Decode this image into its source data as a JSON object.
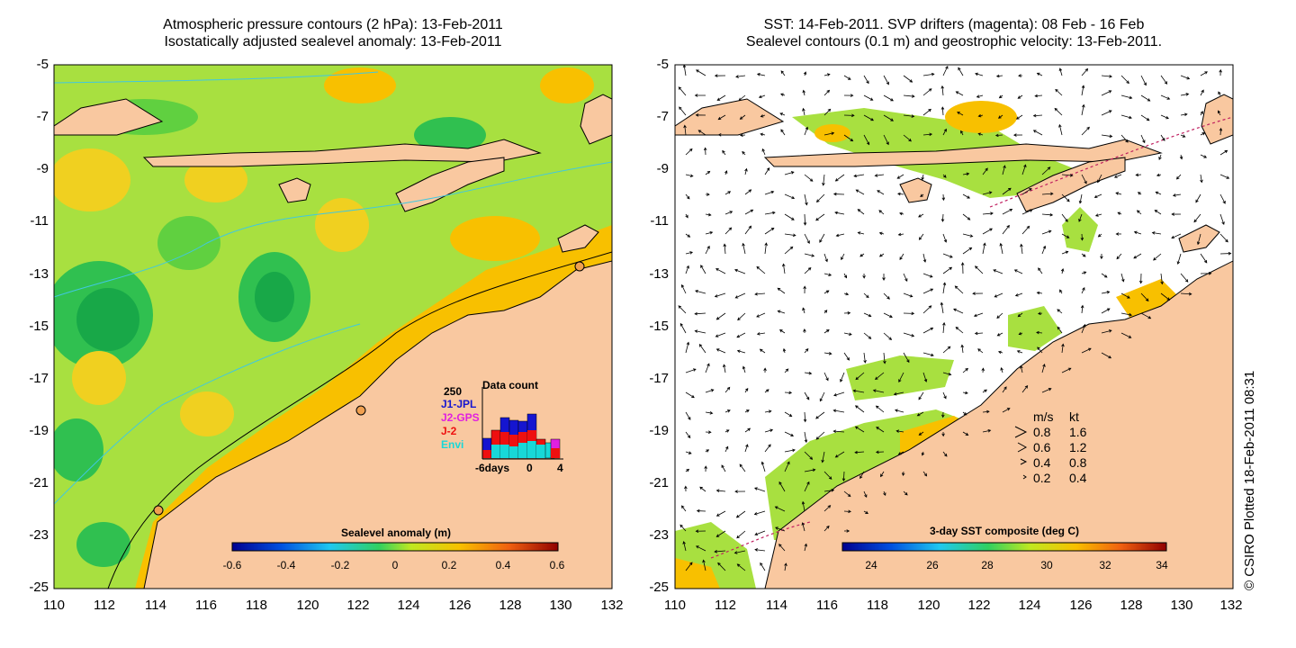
{
  "left_panel": {
    "title_line1": "Atmospheric pressure contours (2 hPa): 13-Feb-2011",
    "title_line2": "Isostatically adjusted sealevel anomaly: 13-Feb-2011",
    "colorbar_label": "Sealevel anomaly (m)",
    "colorbar_ticks": [
      "-0.6",
      "-0.4",
      "-0.2",
      "0",
      "0.2",
      "0.4",
      "0.6"
    ],
    "data_count": {
      "title": "Data count",
      "max_label": "250",
      "legend": [
        {
          "name": "J1-JPL",
          "color": "#1515d0"
        },
        {
          "name": "J2-GPS",
          "color": "#e020e0"
        },
        {
          "name": "J-2",
          "color": "#ee1010"
        },
        {
          "name": "Envi",
          "color": "#18d8d8"
        }
      ],
      "x_labels": [
        "-6days",
        "0",
        "4"
      ]
    }
  },
  "right_panel": {
    "title_line1": "SST: 14-Feb-2011. SVP drifters (magenta): 08 Feb - 16 Feb",
    "title_line2": "Sealevel contours (0.1 m) and geostrophic velocity: 13-Feb-2011.",
    "colorbar_label": "3-day SST composite (deg C)",
    "colorbar_ticks": [
      "24",
      "26",
      "28",
      "30",
      "32",
      "34"
    ],
    "speed_legend": {
      "header_ms": "m/s",
      "header_kt": "kt",
      "rows": [
        {
          "ms": "0.8",
          "kt": "1.6"
        },
        {
          "ms": "0.6",
          "kt": "1.2"
        },
        {
          "ms": "0.4",
          "kt": "0.8"
        },
        {
          "ms": "0.2",
          "kt": "0.4"
        }
      ]
    }
  },
  "axes": {
    "x_ticks": [
      "110",
      "112",
      "114",
      "116",
      "118",
      "120",
      "122",
      "124",
      "126",
      "128",
      "130",
      "132"
    ],
    "y_ticks": [
      "-5",
      "-7",
      "-9",
      "-11",
      "-13",
      "-15",
      "-17",
      "-19",
      "-21",
      "-23",
      "-25"
    ]
  },
  "credit": "© CSIRO Plotted 18-Feb-2011 08:31",
  "colors": {
    "land": "#f9c8a0",
    "ocean_base": "#a8e040",
    "contour": "#40c8e0"
  }
}
